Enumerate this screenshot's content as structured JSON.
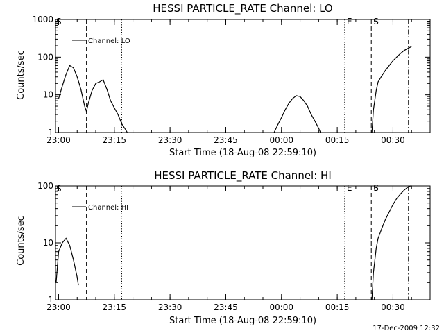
{
  "footer_date": "17-Dec-2009 12:32",
  "chart_data": [
    {
      "type": "line",
      "title": "HESSI PARTICLE_RATE Channel: LO",
      "xlabel": "Start Time (18-Aug-08 22:59:10)",
      "ylabel": "Counts/sec",
      "yscale": "log",
      "ylim": [
        1,
        1000
      ],
      "xlim": [
        "22:59:10",
        "00:40:00"
      ],
      "ytick_labels": [
        "1",
        "10",
        "100",
        "1000"
      ],
      "xtick_labels": [
        "23:00",
        "23:15",
        "23:30",
        "23:45",
        "00:00",
        "00:15",
        "00:30"
      ],
      "legend": "Channel: LO",
      "legend_placement": "top-left",
      "markers": [
        {
          "time": "23:07:30",
          "style": "dashed",
          "label": ""
        },
        {
          "time": "23:17:00",
          "style": "dotted",
          "label": ""
        },
        {
          "time": "00:17:00",
          "style": "dotted",
          "label": "E"
        },
        {
          "time": "00:24:10",
          "style": "dashed",
          "label": "S"
        },
        {
          "time": "00:34:10",
          "style": "dashdot",
          "label": ""
        }
      ],
      "corner_label": "S",
      "series": [
        {
          "name": "Channel: LO",
          "segments": [
            [
              [
                "23:00:00",
                8
              ],
              [
                "23:01:00",
                17
              ],
              [
                "23:02:00",
                35
              ],
              [
                "23:03:00",
                60
              ],
              [
                "23:04:00",
                52
              ],
              [
                "23:05:00",
                30
              ],
              [
                "23:06:00",
                14
              ],
              [
                "23:07:00",
                5
              ],
              [
                "23:07:30",
                3.6
              ],
              [
                "23:08:00",
                6
              ],
              [
                "23:09:00",
                13
              ],
              [
                "23:10:00",
                20
              ],
              [
                "23:11:00",
                22
              ],
              [
                "23:12:00",
                25
              ],
              [
                "23:13:00",
                14
              ],
              [
                "23:14:00",
                7
              ],
              [
                "23:15:00",
                4.5
              ],
              [
                "23:16:00",
                3
              ],
              [
                "23:17:00",
                1.7
              ],
              [
                "23:18:00",
                1.2
              ],
              [
                "23:18:30",
                1
              ]
            ],
            [
              [
                "23:58:00",
                1
              ],
              [
                "23:59:00",
                1.6
              ],
              [
                "00:00:00",
                2.5
              ],
              [
                "00:01:00",
                4
              ],
              [
                "00:02:00",
                6
              ],
              [
                "00:03:00",
                8
              ],
              [
                "00:04:00",
                9.5
              ],
              [
                "00:05:00",
                9
              ],
              [
                "00:06:00",
                7
              ],
              [
                "00:07:00",
                5
              ],
              [
                "00:08:00",
                3
              ],
              [
                "00:09:00",
                2
              ],
              [
                "00:10:00",
                1.3
              ],
              [
                "00:10:30",
                1
              ]
            ],
            [
              [
                "00:24:20",
                1
              ],
              [
                "00:24:45",
                4
              ],
              [
                "00:25:30",
                13
              ],
              [
                "00:26:00",
                22
              ],
              [
                "00:27:00",
                32
              ],
              [
                "00:28:00",
                45
              ],
              [
                "00:29:00",
                60
              ],
              [
                "00:30:00",
                80
              ],
              [
                "00:31:00",
                100
              ],
              [
                "00:32:00",
                125
              ],
              [
                "00:33:00",
                150
              ],
              [
                "00:34:00",
                170
              ],
              [
                "00:35:00",
                190
              ]
            ]
          ]
        }
      ]
    },
    {
      "type": "line",
      "title": "HESSI PARTICLE_RATE Channel: HI",
      "xlabel": "Start Time (18-Aug-08 22:59:10)",
      "ylabel": "Counts/sec",
      "yscale": "log",
      "ylim": [
        1,
        100
      ],
      "xlim": [
        "22:59:10",
        "00:40:00"
      ],
      "ytick_labels": [
        "1",
        "10",
        "100"
      ],
      "xtick_labels": [
        "23:00",
        "23:15",
        "23:30",
        "23:45",
        "00:00",
        "00:15",
        "00:30"
      ],
      "legend": "Channel: HI",
      "legend_placement": "top-left",
      "markers": [
        {
          "time": "23:07:30",
          "style": "dashed",
          "label": ""
        },
        {
          "time": "23:17:00",
          "style": "dotted",
          "label": ""
        },
        {
          "time": "00:17:00",
          "style": "dotted",
          "label": "E"
        },
        {
          "time": "00:24:10",
          "style": "dashed",
          "label": "S"
        },
        {
          "time": "00:34:10",
          "style": "dashdot",
          "label": ""
        }
      ],
      "corner_label": "S",
      "series": [
        {
          "name": "Channel: HI",
          "segments": [
            [
              [
                "22:59:20",
                2
              ],
              [
                "23:00:00",
                7
              ],
              [
                "23:01:00",
                10
              ],
              [
                "23:02:00",
                12
              ],
              [
                "23:03:00",
                9
              ],
              [
                "23:04:00",
                5
              ],
              [
                "23:05:00",
                2.5
              ],
              [
                "23:05:20",
                1.8
              ]
            ],
            [
              [
                "00:24:20",
                1
              ],
              [
                "00:24:45",
                3
              ],
              [
                "00:25:30",
                8
              ],
              [
                "00:26:00",
                12
              ],
              [
                "00:27:00",
                18
              ],
              [
                "00:28:00",
                26
              ],
              [
                "00:29:00",
                35
              ],
              [
                "00:30:00",
                47
              ],
              [
                "00:31:00",
                60
              ],
              [
                "00:32:00",
                72
              ],
              [
                "00:33:00",
                84
              ],
              [
                "00:34:00",
                95
              ],
              [
                "00:35:00",
                102
              ]
            ]
          ]
        }
      ]
    }
  ]
}
